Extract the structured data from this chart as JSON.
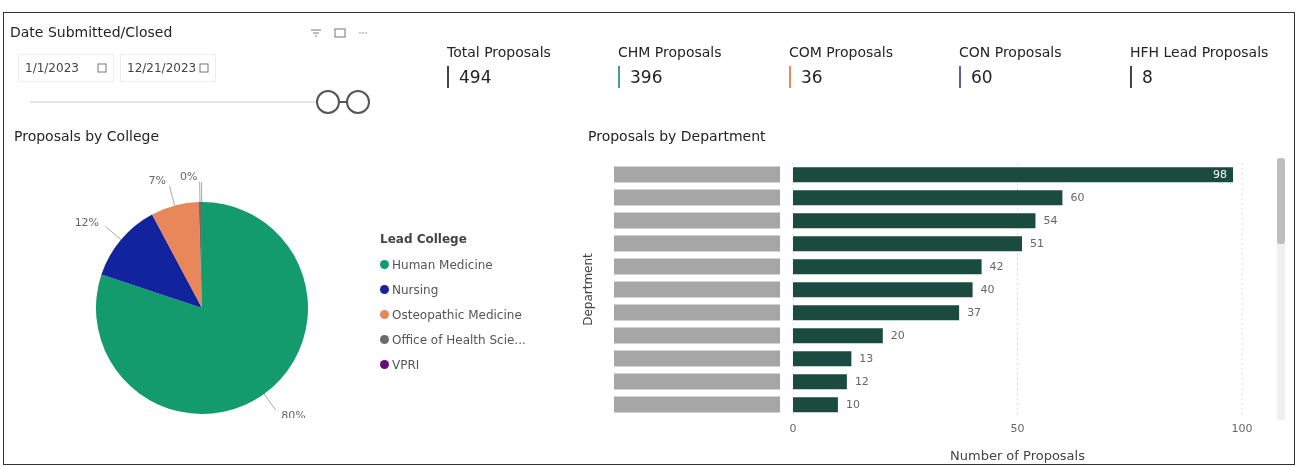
{
  "chart_data": [
    {
      "type": "other",
      "title": "Date Submitted/Closed",
      "annotations": [
        "1/1/2023",
        "12/21/2023"
      ]
    },
    {
      "type": "other",
      "categories": [
        "Total Proposals",
        "CHM Proposals",
        "COM Proposals",
        "CON Proposals",
        "HFH Lead Proposals"
      ],
      "values": [
        494,
        396,
        36,
        60,
        8
      ],
      "data_labels": true,
      "colors": [
        "#444444",
        "#3aa58a",
        "#e8875a",
        "#5a5fa8",
        "#444444"
      ]
    },
    {
      "type": "pie",
      "title": "Proposals by College",
      "legend_title": "Lead College",
      "legend": "right",
      "categories": [
        "Human Medicine",
        "Nursing",
        "Osteopathic Medicine",
        "Office of Health Scie...",
        "VPRI"
      ],
      "values": [
        80.1,
        12.1,
        7.3,
        0.4,
        0.1
      ],
      "value_labels": [
        "80%",
        "12%",
        "7%",
        "0%",
        null
      ],
      "colors": [
        "#139b6e",
        "#12239e",
        "#e8875a",
        "#6b6b6b",
        "#6b0a7a"
      ]
    },
    {
      "type": "bar",
      "orientation": "horizontal",
      "title": "Proposals by Department",
      "xlabel": "Number of Proposals",
      "ylabel": "Department",
      "categories": [
        null,
        null,
        null,
        null,
        null,
        null,
        null,
        null,
        null,
        null,
        null
      ],
      "values": [
        98,
        60,
        54,
        51,
        42,
        40,
        37,
        20,
        13,
        12,
        10
      ],
      "color": "#1b4a3e",
      "xlim": [
        0,
        100
      ],
      "xticks": [
        0,
        50,
        100
      ],
      "grid": "x",
      "data_labels": true
    }
  ]
}
